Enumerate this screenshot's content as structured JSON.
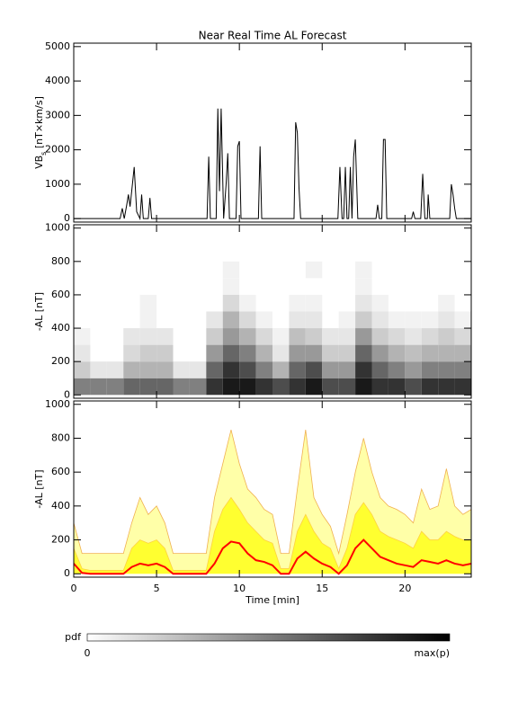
{
  "chart_data": [
    {
      "type": "line",
      "title": "Near Real Time AL Forecast",
      "ylabel": [
        "VB",
        "s",
        " [nT×km/s]"
      ],
      "color": "#000000",
      "xlim": [
        0,
        24
      ],
      "xticks": [
        0,
        5,
        10,
        15,
        20
      ],
      "ylim": [
        -100,
        5100
      ],
      "yticks": [
        0,
        1000,
        2000,
        3000,
        4000,
        5000
      ],
      "x": [
        0,
        2.8,
        2.93,
        3.05,
        3.2,
        3.3,
        3.4,
        3.5,
        3.65,
        3.8,
        4.0,
        4.1,
        4.2,
        4.5,
        4.6,
        4.7,
        8.05,
        8.15,
        8.25,
        8.6,
        8.7,
        8.8,
        8.9,
        9.05,
        9.2,
        9.3,
        9.4,
        9.8,
        9.9,
        10.0,
        10.1,
        11.15,
        11.25,
        11.35,
        13.3,
        13.4,
        13.5,
        13.6,
        13.7,
        15.95,
        16.07,
        16.2,
        16.3,
        16.4,
        16.5,
        16.6,
        16.7,
        16.8,
        16.9,
        17.0,
        17.15,
        18.25,
        18.35,
        18.45,
        18.6,
        18.7,
        18.8,
        18.9,
        20.4,
        20.5,
        20.6,
        20.95,
        21.07,
        21.2,
        21.35,
        21.4,
        21.5,
        22.7,
        22.8,
        22.9,
        23.0,
        23.1,
        24
      ],
      "values": [
        0,
        0,
        300,
        0,
        400,
        700,
        350,
        800,
        1500,
        200,
        0,
        700,
        0,
        0,
        600,
        0,
        0,
        1800,
        0,
        0,
        3200,
        800,
        3200,
        0,
        1000,
        1900,
        0,
        0,
        2100,
        2250,
        0,
        0,
        2100,
        0,
        0,
        2800,
        2500,
        900,
        0,
        0,
        1500,
        0,
        0,
        1500,
        0,
        0,
        1500,
        0,
        1800,
        2300,
        0,
        0,
        400,
        0,
        0,
        2300,
        2300,
        0,
        0,
        200,
        0,
        0,
        1300,
        0,
        0,
        700,
        0,
        0,
        1000,
        700,
        300,
        0,
        0
      ]
    },
    {
      "type": "heatmap",
      "ylabel": "-AL [nT]",
      "xlim": [
        0,
        24
      ],
      "xticks": [
        0,
        5,
        10,
        15,
        20
      ],
      "ylim": [
        -20,
        1020
      ],
      "yticks": [
        0,
        200,
        400,
        600,
        800,
        1000
      ],
      "xbins": [
        0,
        1,
        2,
        3,
        4,
        5,
        6,
        7,
        8,
        9,
        10,
        11,
        12,
        13,
        14,
        15,
        16,
        17,
        18,
        19,
        20,
        21,
        22,
        23,
        24
      ],
      "ybins": [
        0,
        100,
        200,
        300,
        400,
        500,
        600,
        700,
        800
      ],
      "values": [
        [
          0.5,
          0.2,
          0.1,
          0.05,
          0,
          0,
          0,
          0
        ],
        [
          0.5,
          0.1,
          0,
          0,
          0,
          0,
          0,
          0
        ],
        [
          0.5,
          0.1,
          0,
          0,
          0,
          0,
          0,
          0
        ],
        [
          0.6,
          0.3,
          0.15,
          0.1,
          0,
          0,
          0,
          0
        ],
        [
          0.6,
          0.3,
          0.2,
          0.1,
          0.05,
          0.05,
          0,
          0
        ],
        [
          0.6,
          0.3,
          0.2,
          0.1,
          0,
          0,
          0,
          0
        ],
        [
          0.5,
          0.1,
          0,
          0,
          0,
          0,
          0,
          0
        ],
        [
          0.5,
          0.1,
          0,
          0,
          0,
          0,
          0,
          0
        ],
        [
          0.8,
          0.6,
          0.4,
          0.2,
          0.1,
          0,
          0,
          0
        ],
        [
          0.9,
          0.8,
          0.6,
          0.4,
          0.3,
          0.15,
          0.05,
          0.05
        ],
        [
          0.9,
          0.7,
          0.5,
          0.3,
          0.15,
          0.05,
          0,
          0
        ],
        [
          0.8,
          0.5,
          0.3,
          0.15,
          0.05,
          0,
          0,
          0
        ],
        [
          0.7,
          0.3,
          0.1,
          0.05,
          0,
          0,
          0,
          0
        ],
        [
          0.8,
          0.6,
          0.4,
          0.25,
          0.1,
          0.05,
          0,
          0
        ],
        [
          0.9,
          0.7,
          0.4,
          0.2,
          0.1,
          0.05,
          0,
          0.05
        ],
        [
          0.7,
          0.4,
          0.2,
          0.1,
          0,
          0,
          0,
          0
        ],
        [
          0.7,
          0.4,
          0.2,
          0.1,
          0.05,
          0,
          0,
          0
        ],
        [
          0.9,
          0.8,
          0.6,
          0.4,
          0.2,
          0.1,
          0.05,
          0.05
        ],
        [
          0.8,
          0.6,
          0.4,
          0.2,
          0.1,
          0.05,
          0,
          0
        ],
        [
          0.8,
          0.5,
          0.3,
          0.15,
          0.05,
          0,
          0,
          0
        ],
        [
          0.7,
          0.4,
          0.25,
          0.1,
          0.05,
          0,
          0,
          0
        ],
        [
          0.8,
          0.5,
          0.3,
          0.15,
          0.05,
          0,
          0,
          0
        ],
        [
          0.8,
          0.5,
          0.3,
          0.2,
          0.1,
          0.05,
          0,
          0
        ],
        [
          0.8,
          0.5,
          0.3,
          0.15,
          0.05,
          0,
          0,
          0
        ]
      ],
      "colorbar": {
        "label": "pdf",
        "min_label": "0",
        "max_label": "max(p)"
      }
    },
    {
      "type": "area",
      "ylabel": "-AL [nT]",
      "xlabel": "Time [min]",
      "xlim": [
        0,
        24
      ],
      "xticks": [
        0,
        5,
        10,
        15,
        20
      ],
      "ylim": [
        -20,
        1020
      ],
      "yticks": [
        0,
        200,
        400,
        600,
        800,
        1000
      ],
      "x": [
        0,
        0.5,
        1,
        1.5,
        2,
        2.5,
        3,
        3.5,
        4,
        4.5,
        5,
        5.5,
        6,
        6.5,
        7,
        7.5,
        8,
        8.5,
        9,
        9.5,
        10,
        10.5,
        11,
        11.5,
        12,
        12.5,
        13,
        13.5,
        14,
        14.5,
        15,
        15.5,
        16,
        16.5,
        17,
        17.5,
        18,
        18.5,
        19,
        19.5,
        20,
        20.5,
        21,
        21.5,
        22,
        22.5,
        23,
        23.5,
        24
      ],
      "series": [
        {
          "color": "#ffffa8",
          "edge": "#f0b050",
          "fill": true,
          "values": [
            300,
            120,
            120,
            120,
            120,
            120,
            120,
            300,
            450,
            350,
            400,
            300,
            120,
            120,
            120,
            120,
            120,
            450,
            650,
            850,
            650,
            500,
            450,
            380,
            350,
            120,
            120,
            500,
            850,
            450,
            350,
            280,
            120,
            350,
            600,
            800,
            600,
            450,
            400,
            380,
            350,
            300,
            500,
            380,
            400,
            620,
            400,
            350,
            380
          ]
        },
        {
          "color": "#ffff30",
          "edge": "#ffd040",
          "fill": true,
          "values": [
            150,
            30,
            20,
            20,
            20,
            20,
            20,
            150,
            200,
            180,
            200,
            150,
            20,
            20,
            20,
            20,
            20,
            250,
            380,
            450,
            380,
            300,
            250,
            200,
            180,
            30,
            30,
            250,
            350,
            250,
            180,
            150,
            30,
            150,
            350,
            420,
            350,
            250,
            220,
            200,
            180,
            150,
            250,
            200,
            200,
            250,
            220,
            200,
            200
          ]
        },
        {
          "color": "#ff0000",
          "fill": false,
          "values": [
            60,
            5,
            0,
            0,
            0,
            0,
            0,
            40,
            60,
            50,
            60,
            40,
            0,
            0,
            0,
            0,
            0,
            60,
            150,
            190,
            180,
            120,
            80,
            70,
            50,
            0,
            0,
            90,
            130,
            90,
            60,
            40,
            0,
            50,
            150,
            200,
            150,
            100,
            80,
            60,
            50,
            40,
            80,
            70,
            60,
            80,
            60,
            50,
            60
          ]
        }
      ]
    }
  ]
}
